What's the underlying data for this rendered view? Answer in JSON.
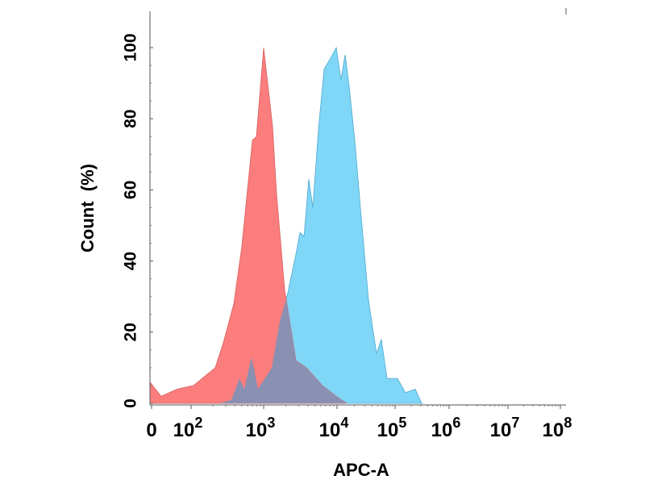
{
  "chart_data": {
    "type": "area",
    "title": "",
    "xlabel": "APC-A",
    "ylabel": "Count  (%)",
    "x_scale": "log",
    "ylim": [
      0,
      105
    ],
    "grid": false,
    "x_ticks": [
      {
        "value": 0,
        "base": "0",
        "exp": ""
      },
      {
        "value": 100,
        "base": "10",
        "exp": "2"
      },
      {
        "value": 1000,
        "base": "10",
        "exp": "3"
      },
      {
        "value": 10000,
        "base": "10",
        "exp": "4"
      },
      {
        "value": 100000,
        "base": "10",
        "exp": "5"
      },
      {
        "value": 1000000,
        "base": "10",
        "exp": "6"
      },
      {
        "value": 10000000,
        "base": "10",
        "exp": "7"
      },
      {
        "value": 100000000,
        "base": "10",
        "exp": "8"
      }
    ],
    "y_ticks": [
      "0",
      "20",
      "40",
      "60",
      "80",
      "100"
    ],
    "overlap_color": "#8a90b2",
    "series": [
      {
        "color": "#fb7d7d",
        "x": [
          0,
          24,
          65,
          108,
          215,
          278,
          388,
          500,
          700,
          794,
          1000,
          1320,
          1500,
          1930,
          2760,
          3820,
          6300,
          10700,
          14700
        ],
        "y": [
          6,
          2,
          4,
          5,
          10,
          17,
          28,
          44,
          74,
          75,
          100,
          78,
          59,
          32,
          12,
          10,
          5,
          1.5,
          0
        ]
      },
      {
        "color": "#80d6f7",
        "x": [
          0,
          250,
          360,
          464,
          541,
          681,
          836,
          1290,
          1660,
          2130,
          2760,
          3130,
          3550,
          4120,
          4680,
          5590,
          6670,
          8160,
          9750,
          11700,
          13800,
          16200,
          20200,
          25300,
          34900,
          48000,
          58100,
          72700,
          111000,
          156000,
          236000,
          311000,
          330000
        ],
        "y": [
          0,
          0,
          1,
          7,
          4,
          13,
          4,
          10,
          23,
          31,
          42,
          48,
          47,
          63,
          55,
          77,
          94,
          97,
          100,
          91,
          98,
          89,
          74,
          55,
          29,
          14,
          18,
          7,
          7,
          3,
          4,
          0,
          0
        ]
      }
    ]
  }
}
